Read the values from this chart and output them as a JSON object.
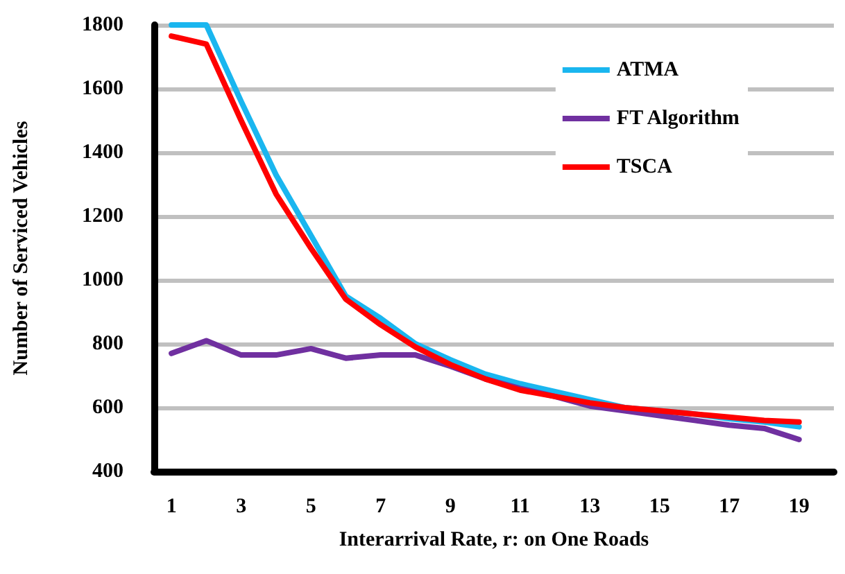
{
  "chart_data": {
    "type": "line",
    "xlabel": "Interarrival Rate, r: on One Roads",
    "ylabel": "Number of Serviced Vehicles",
    "x": [
      1,
      2,
      3,
      4,
      5,
      6,
      7,
      8,
      9,
      10,
      11,
      12,
      13,
      14,
      15,
      16,
      17,
      18,
      19
    ],
    "series": [
      {
        "name": "ATMA",
        "color": "#1ab6ef",
        "values": [
          1800,
          1800,
          1560,
          1330,
          1140,
          950,
          880,
          800,
          750,
          705,
          675,
          650,
          625,
          600,
          590,
          580,
          565,
          555,
          540
        ]
      },
      {
        "name": "FT Algorithm",
        "color": "#7030a0",
        "values": [
          770,
          810,
          765,
          765,
          785,
          755,
          765,
          765,
          730,
          690,
          660,
          635,
          605,
          590,
          575,
          560,
          545,
          535,
          500
        ]
      },
      {
        "name": "TSCA",
        "color": "#ff0000",
        "values": [
          1765,
          1740,
          1500,
          1270,
          1100,
          940,
          860,
          790,
          735,
          690,
          655,
          635,
          615,
          600,
          590,
          580,
          570,
          560,
          555
        ]
      }
    ],
    "xlim": [
      0.5,
      20
    ],
    "xticks": [
      1,
      3,
      5,
      7,
      9,
      11,
      13,
      15,
      17,
      19
    ],
    "ylim": [
      400,
      1800
    ],
    "yticks": [
      400,
      600,
      800,
      1000,
      1200,
      1400,
      1600,
      1800
    ],
    "grid": "y",
    "legend": "top right",
    "marker": "none",
    "line_style": "solid"
  }
}
